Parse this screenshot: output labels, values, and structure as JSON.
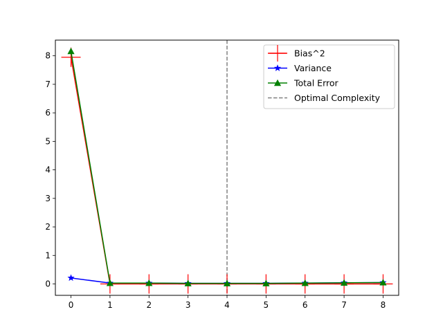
{
  "chart_data": {
    "type": "line",
    "title": "",
    "xlabel": "",
    "ylabel": "",
    "xlim": [
      -0.4,
      8.4
    ],
    "ylim": [
      -0.4,
      8.55
    ],
    "x_ticks": [
      0,
      1,
      2,
      3,
      4,
      5,
      6,
      7,
      8
    ],
    "y_ticks": [
      0,
      1,
      2,
      3,
      4,
      5,
      6,
      7,
      8
    ],
    "grid": false,
    "legend_position": "top-right",
    "x": [
      0,
      1,
      2,
      3,
      4,
      5,
      6,
      7,
      8
    ],
    "series": [
      {
        "name": "Bias^2",
        "color": "#ff0000",
        "marker": "plus",
        "values": [
          7.95,
          0.0,
          0.0,
          0.0,
          0.0,
          0.0,
          0.0,
          0.0,
          0.0
        ]
      },
      {
        "name": "Variance",
        "color": "#0000ff",
        "marker": "star",
        "values": [
          0.21,
          0.03,
          0.03,
          0.02,
          0.02,
          0.02,
          0.03,
          0.04,
          0.05
        ]
      },
      {
        "name": "Total Error",
        "color": "#008000",
        "marker": "triangle",
        "values": [
          8.16,
          0.03,
          0.03,
          0.02,
          0.02,
          0.02,
          0.03,
          0.04,
          0.05
        ]
      }
    ],
    "vlines": [
      {
        "name": "Optimal Complexity",
        "x": 4,
        "color": "#808080",
        "style": "dashed"
      }
    ]
  }
}
